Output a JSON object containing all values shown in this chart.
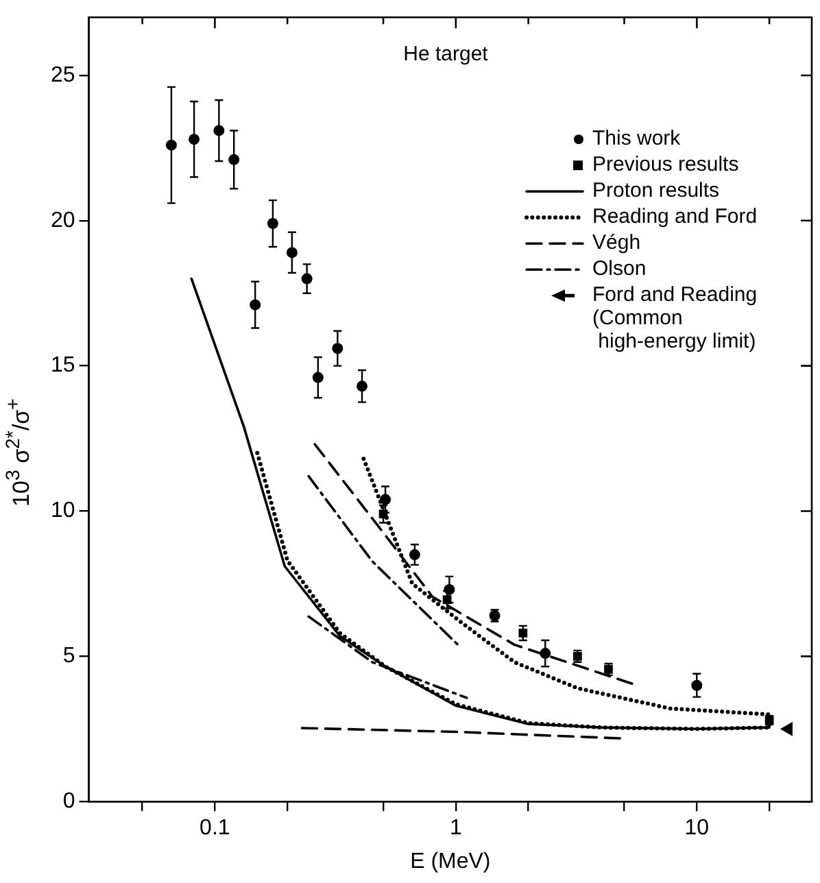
{
  "chart_data": {
    "type": "scatter",
    "title": "He target",
    "xlabel": "E (MeV)",
    "ylabel": "10$^{3}$ σ$^{2*}$/σ$^{+}$",
    "log": "x",
    "xlim": [
      0.03,
      30
    ],
    "xticks": [
      {
        "value": 0.05,
        "label": null
      },
      {
        "value": 0.1,
        "label": "0.1"
      },
      {
        "value": 0.2,
        "label": null
      },
      {
        "value": 0.5,
        "label": null
      },
      1,
      {
        "value": 2,
        "label": null
      },
      {
        "value": 5,
        "label": null
      },
      10,
      {
        "value": 20,
        "label": null
      }
    ],
    "ylim": [
      0,
      27
    ],
    "yticks": [
      0,
      5,
      10,
      15,
      20,
      25
    ],
    "legend": "top right",
    "series": [
      {
        "name": "This work",
        "marker": "circle",
        "color": "#000000",
        "x": [
          0.066,
          0.082,
          0.104,
          0.12,
          0.147,
          0.174,
          0.209,
          0.241,
          0.268,
          0.323,
          0.408,
          0.51,
          0.675,
          0.94,
          1.45,
          2.35,
          10
        ],
        "values": [
          22.6,
          22.8,
          23.1,
          22.1,
          17.1,
          19.9,
          18.9,
          18.0,
          14.6,
          15.6,
          14.3,
          10.4,
          8.5,
          7.3,
          6.4,
          5.1,
          4.0
        ],
        "errors": [
          2.0,
          1.3,
          1.05,
          1.0,
          0.8,
          0.8,
          0.7,
          0.5,
          0.7,
          0.6,
          0.55,
          0.45,
          0.35,
          0.45,
          0.2,
          0.45,
          0.4
        ]
      },
      {
        "name": "Previous results",
        "marker": "square",
        "color": "#000000",
        "x": [
          0.5,
          0.92,
          1.9,
          3.2,
          4.3,
          20
        ],
        "values": [
          9.9,
          6.95,
          5.8,
          5.0,
          4.55,
          2.8
        ],
        "errors": [
          0.3,
          0.3,
          0.25,
          0.2,
          0.2,
          0.15
        ]
      },
      {
        "name": "Proton results",
        "type": "line",
        "line_style": "solid",
        "marker": "none",
        "color": "#000000",
        "x": [
          0.08,
          0.132,
          0.195,
          0.33,
          0.51,
          1.0,
          2.0,
          4.0,
          10,
          20
        ],
        "values": [
          18.0,
          12.9,
          8.1,
          5.7,
          4.65,
          3.3,
          2.67,
          2.55,
          2.5,
          2.55
        ]
      },
      {
        "name": "Reading and Ford",
        "type": "line",
        "line_style": "dotted",
        "marker": "none",
        "color": "#000000",
        "x": [
          0.15,
          0.2,
          0.33,
          0.51,
          1.0,
          2,
          4,
          10,
          20,
          20,
          7.8,
          3.2,
          1.75,
          1.06,
          0.66,
          0.41
        ],
        "values": [
          12.0,
          8.3,
          5.8,
          4.65,
          3.35,
          2.7,
          2.55,
          2.5,
          2.55,
          3.0,
          3.2,
          3.9,
          4.8,
          6.15,
          7.5,
          11.9
        ]
      },
      {
        "name": "Végh",
        "type": "line",
        "line_style": "dashed",
        "marker": "none",
        "color": "#000000",
        "x": [
          0.26,
          0.45,
          0.8,
          1.75,
          5.75
        ],
        "values": [
          12.3,
          9.75,
          7.05,
          5.4,
          3.98
        ]
      },
      {
        "type": "line",
        "line_style": "dashed",
        "marker": "none",
        "color": "#000000",
        "x": [
          0.23,
          1.0,
          5.0
        ],
        "values": [
          2.53,
          2.4,
          2.17
        ]
      },
      {
        "name": "Olson",
        "type": "line",
        "line_style": "dashdot",
        "marker": "none",
        "color": "#000000",
        "x": [
          0.245,
          0.45,
          1.04
        ],
        "values": [
          11.2,
          8.27,
          5.33
        ]
      },
      {
        "type": "line",
        "line_style": "dashdot",
        "marker": "none",
        "color": "#000000",
        "x": [
          0.245,
          0.45,
          1.11
        ],
        "values": [
          6.37,
          4.8,
          3.57
        ]
      },
      {
        "name": "Ford and Reading (Common high-energy limit)",
        "marker": "triangle",
        "color": "#000000",
        "x": [
          24
        ],
        "values": [
          2.5
        ]
      }
    ]
  }
}
